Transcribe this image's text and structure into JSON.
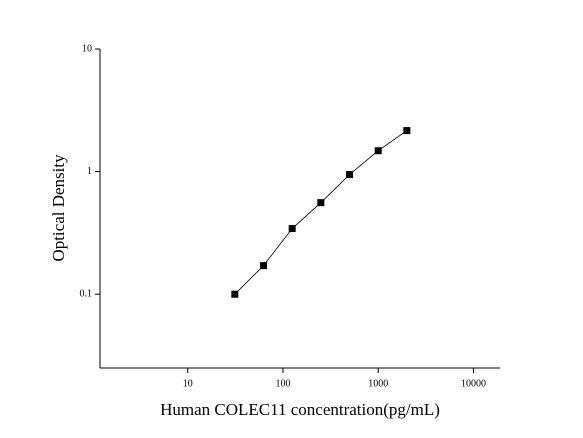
{
  "chart_data": {
    "type": "scatter",
    "x_label": "Human COLEC11 concentration(pg/mL)",
    "y_label": "Optical Density",
    "x": [
      31.25,
      62.5,
      125,
      250,
      500,
      1000,
      2000
    ],
    "values": [
      0.1,
      0.171,
      0.343,
      0.558,
      0.946,
      1.48,
      2.16
    ],
    "color": "#000000",
    "xscale": "log",
    "yscale": "log",
    "xlim": [
      1.2,
      19000
    ],
    "ylim": [
      0.025,
      10
    ],
    "xticks": [
      10,
      100,
      1000,
      10000
    ],
    "yticks": [
      0.1,
      1,
      10
    ],
    "fit_line": true
  }
}
